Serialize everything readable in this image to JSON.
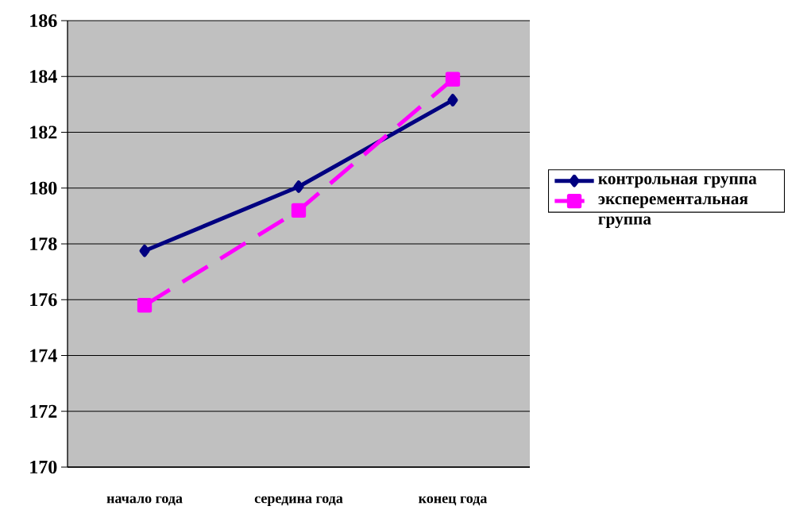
{
  "chart_data": {
    "type": "line",
    "categories": [
      "начало года",
      "середина года",
      "конец года"
    ],
    "series": [
      {
        "name": "контрольная группа",
        "color": "#000080",
        "values": [
          177.75,
          180.05,
          183.15
        ],
        "marker": "diamond",
        "line_style": "solid"
      },
      {
        "name": "эксперементальная группа",
        "color": "#ff00ff",
        "values": [
          175.8,
          179.2,
          183.9
        ],
        "marker": "square",
        "line_style": "dashed"
      }
    ],
    "ylim": [
      170,
      186
    ],
    "yticks": [
      170,
      172,
      174,
      176,
      178,
      180,
      182,
      184,
      186
    ],
    "grid": "y",
    "legend": "right"
  }
}
